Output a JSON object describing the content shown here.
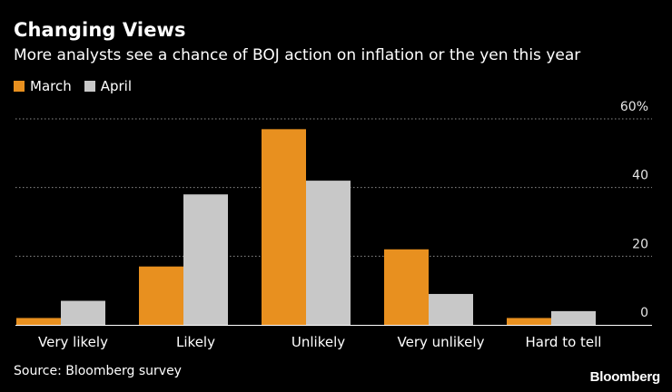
{
  "chart_data": {
    "type": "bar",
    "title": "Changing Views",
    "subtitle": "More analysts see a chance of BOJ action on inflation or the yen this year",
    "categories": [
      "Very likely",
      "Likely",
      "Unlikely",
      "Very unlikely",
      "Hard to tell"
    ],
    "series": [
      {
        "name": "March",
        "color": "#e8901f",
        "values": [
          2,
          17,
          57,
          22,
          2
        ]
      },
      {
        "name": "April",
        "color": "#c8c8c8",
        "values": [
          7,
          38,
          42,
          9,
          4
        ]
      }
    ],
    "ylim": [
      0,
      60
    ],
    "yticks": [
      {
        "value": 0,
        "label": "0"
      },
      {
        "value": 20,
        "label": "20"
      },
      {
        "value": 40,
        "label": "40"
      },
      {
        "value": 60,
        "label": "60%"
      }
    ],
    "xlabel": "",
    "ylabel": "",
    "grid": true,
    "legend_position": "top-left",
    "source": "Source: Bloomberg survey",
    "brand": "Bloomberg"
  }
}
